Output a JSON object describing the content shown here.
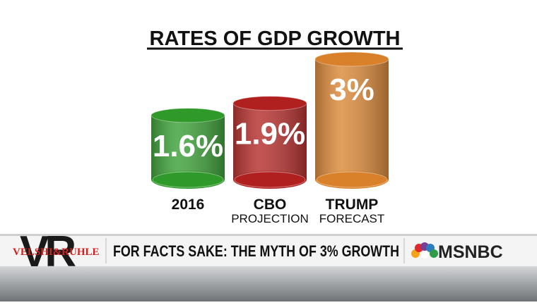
{
  "chart_data": {
    "type": "bar",
    "title": "RATES OF GDP GROWTH",
    "categories": [
      "2016",
      "CBO PROJECTION",
      "TRUMP FORECAST"
    ],
    "values": [
      1.6,
      1.9,
      3
    ],
    "value_labels": [
      "1.6%",
      "1.9%",
      "3%"
    ],
    "colors": [
      "#2f9a2a",
      "#b0201e",
      "#d9812a"
    ]
  },
  "banner": {
    "monogram": "VR",
    "show": "VELSHI&RUHLE",
    "headline": "FOR FACTS SAKE: THE MYTH OF 3% GROWTH",
    "network": "MSNBC"
  }
}
